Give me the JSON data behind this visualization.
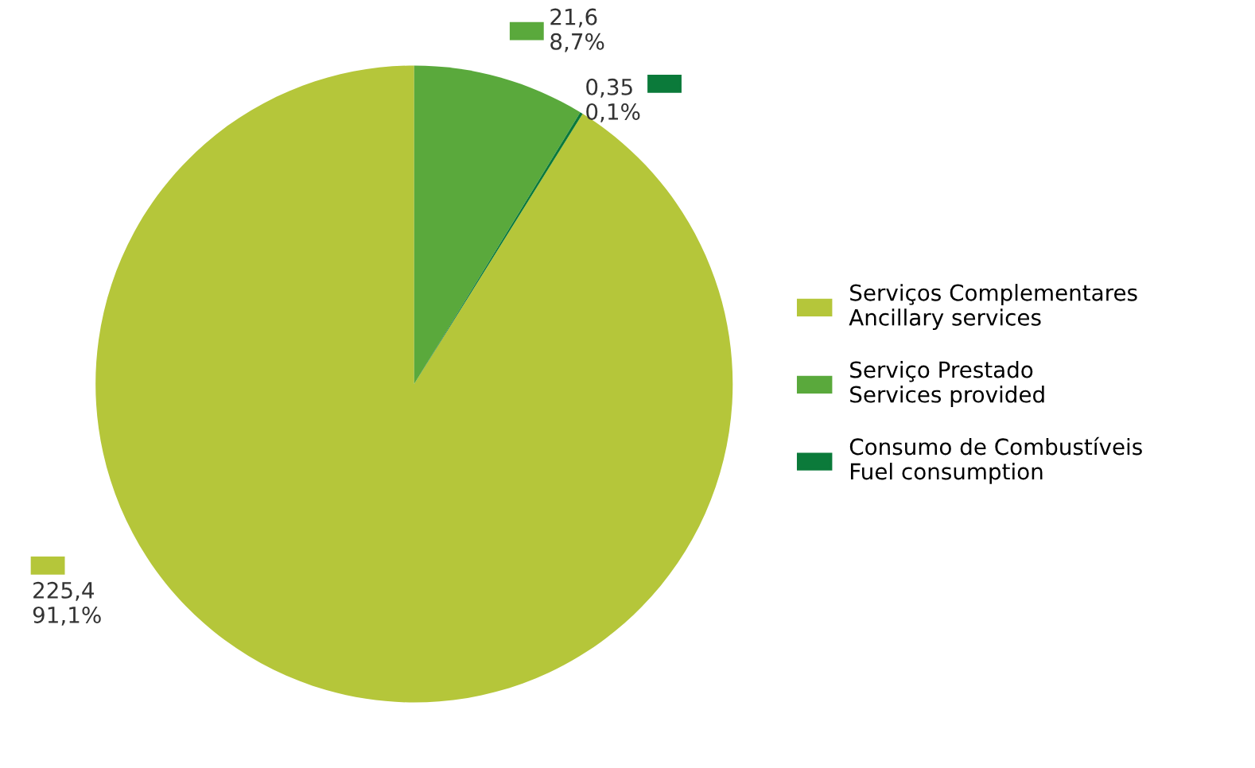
{
  "chart_data": {
    "type": "pie",
    "categories": [
      "Serviços Complementares\nAncillary services",
      "Serviço Prestado\nServices provided",
      "Consumo de Combustíveis\nFuel consumption"
    ],
    "values": [
      225.4,
      21.6,
      0.35
    ],
    "colors": [
      "#b5c63a",
      "#5aa93c",
      "#0b7a3a"
    ],
    "value_labels": [
      "225,4\n91,1%",
      "21,6\n8,7%",
      "0,35\n0,1%"
    ],
    "legend": "right"
  }
}
